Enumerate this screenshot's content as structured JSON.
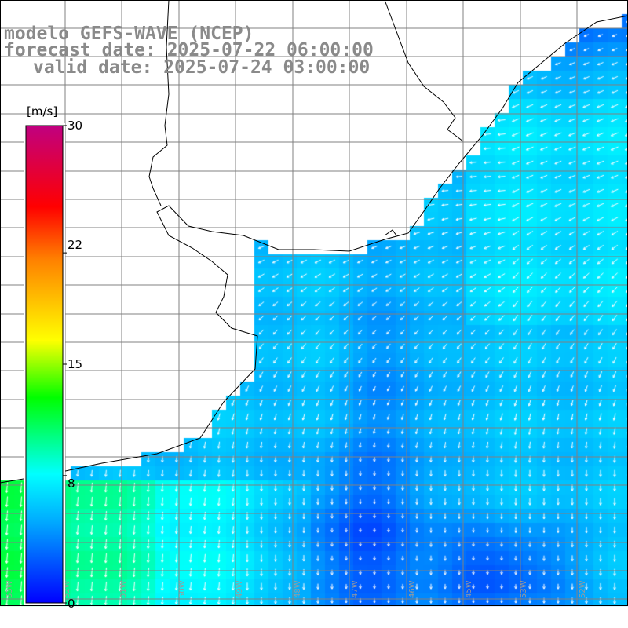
{
  "title": {
    "line1": "modelo GEFS-WAVE (NCEP)",
    "line2": "forecast date: 2025-07-22 06:00:00",
    "line3": "valid date: 2025-07-24 03:00:00"
  },
  "colorbar": {
    "unit": "[m/s]",
    "ticks": [
      "30",
      "22",
      "15",
      "8",
      "0"
    ],
    "tick_values": [
      30,
      22,
      15,
      8,
      0
    ],
    "min": 0,
    "max": 30,
    "colors": [
      "#0000ff",
      "#00aaff",
      "#00ffff",
      "#00ff00",
      "#ffff00",
      "#ff8000",
      "#ff0000",
      "#c00080"
    ]
  },
  "map": {
    "land_color": "#ffffff",
    "coastline_color": "#000000",
    "grid_color": "#808080",
    "field_variable": "wind speed",
    "field_range": [
      0,
      30
    ],
    "longitude_labels": [
      "53W",
      "52W",
      "51W",
      "50W",
      "49W",
      "48W",
      "47W",
      "46W",
      "45W"
    ]
  }
}
